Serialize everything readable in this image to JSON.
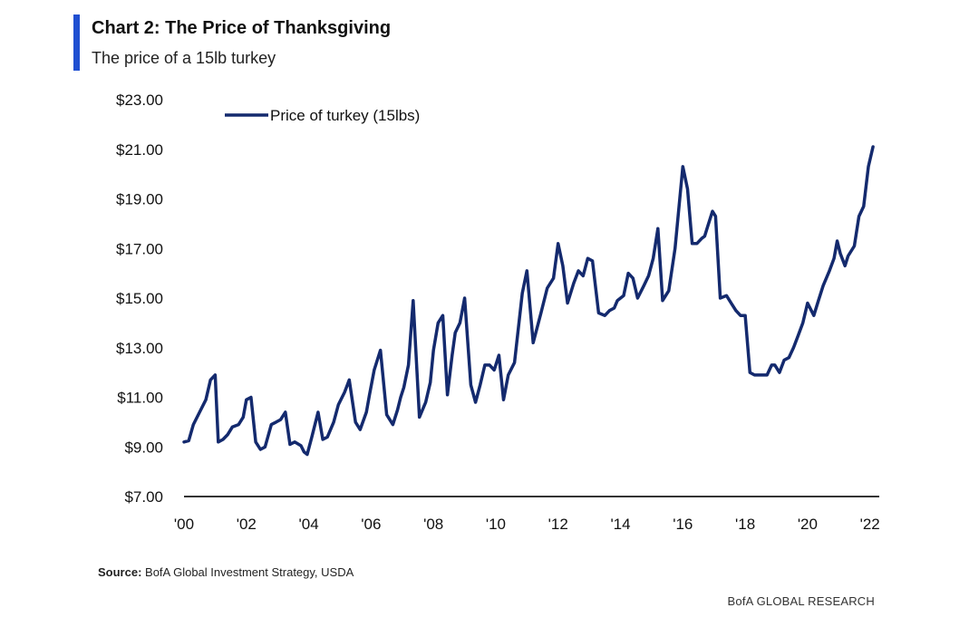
{
  "header": {
    "title": "Chart 2: The Price of Thanksgiving",
    "subtitle": "The price of a 15lb turkey"
  },
  "footer": {
    "source_label": "Source:",
    "source_text": " BofA Global Investment Strategy, USDA",
    "brand": "BofA GLOBAL RESEARCH"
  },
  "colors": {
    "line": "#142a6e",
    "accent": "#1f4fd1",
    "axis": "#333333"
  },
  "chart_data": {
    "type": "line",
    "title": "Chart 2: The Price of Thanksgiving",
    "subtitle": "The price of a 15lb turkey",
    "xlabel": "",
    "ylabel": "",
    "ylim": [
      7,
      23
    ],
    "xlim": [
      2000,
      2022.3
    ],
    "y_ticks": [
      7,
      9,
      11,
      13,
      15,
      17,
      19,
      21,
      23
    ],
    "y_tick_labels": [
      "$7.00",
      "$9.00",
      "$11.00",
      "$13.00",
      "$15.00",
      "$17.00",
      "$19.00",
      "$21.00",
      "$23.00"
    ],
    "x_ticks": [
      2000,
      2002,
      2004,
      2006,
      2008,
      2010,
      2012,
      2014,
      2016,
      2018,
      2020,
      2022
    ],
    "x_tick_labels": [
      "'00",
      "'02",
      "'04",
      "'06",
      "'08",
      "'10",
      "'12",
      "'14",
      "'16",
      "'18",
      "'20",
      "'22"
    ],
    "grid": false,
    "legend_position": "top-left",
    "series": [
      {
        "name": "Price of turkey (15lbs)",
        "x": [
          2000.0,
          2000.15,
          2000.3,
          2000.5,
          2000.7,
          2000.85,
          2001.0,
          2001.1,
          2001.25,
          2001.4,
          2001.55,
          2001.75,
          2001.9,
          2002.0,
          2002.15,
          2002.3,
          2002.45,
          2002.6,
          2002.8,
          2002.95,
          2003.1,
          2003.25,
          2003.4,
          2003.55,
          2003.75,
          2003.85,
          2003.95,
          2004.1,
          2004.3,
          2004.45,
          2004.6,
          2004.8,
          2004.95,
          2005.15,
          2005.3,
          2005.5,
          2005.65,
          2005.85,
          2005.95,
          2006.1,
          2006.3,
          2006.5,
          2006.7,
          2006.85,
          2006.95,
          2007.05,
          2007.2,
          2007.35,
          2007.55,
          2007.75,
          2007.9,
          2008.0,
          2008.15,
          2008.3,
          2008.45,
          2008.6,
          2008.7,
          2008.85,
          2009.0,
          2009.2,
          2009.35,
          2009.5,
          2009.65,
          2009.8,
          2009.95,
          2010.1,
          2010.25,
          2010.4,
          2010.6,
          2010.85,
          2011.0,
          2011.2,
          2011.45,
          2011.65,
          2011.85,
          2012.0,
          2012.15,
          2012.3,
          2012.5,
          2012.65,
          2012.8,
          2012.95,
          2013.1,
          2013.3,
          2013.5,
          2013.65,
          2013.8,
          2013.9,
          2014.1,
          2014.25,
          2014.4,
          2014.55,
          2014.75,
          2014.9,
          2015.05,
          2015.2,
          2015.35,
          2015.55,
          2015.75,
          2015.9,
          2016.0,
          2016.15,
          2016.3,
          2016.45,
          2016.6,
          2016.7,
          2016.8,
          2016.95,
          2017.05,
          2017.2,
          2017.4,
          2017.55,
          2017.7,
          2017.85,
          2018.0,
          2018.15,
          2018.3,
          2018.5,
          2018.7,
          2018.85,
          2018.95,
          2019.1,
          2019.25,
          2019.4,
          2019.55,
          2019.7,
          2019.85,
          2020.0,
          2020.2,
          2020.35,
          2020.5,
          2020.7,
          2020.85,
          2020.95,
          2021.05,
          2021.2,
          2021.3,
          2021.5,
          2021.65,
          2021.8,
          2021.95,
          2022.1
        ],
        "values": [
          9.2,
          9.25,
          9.9,
          10.4,
          10.9,
          11.7,
          11.9,
          9.2,
          9.3,
          9.5,
          9.8,
          9.9,
          10.2,
          10.9,
          11.0,
          9.2,
          8.9,
          9.0,
          9.9,
          10.0,
          10.1,
          10.4,
          9.1,
          9.2,
          9.05,
          8.8,
          8.7,
          9.4,
          10.4,
          9.3,
          9.4,
          10.0,
          10.7,
          11.2,
          11.7,
          10.0,
          9.7,
          10.4,
          11.1,
          12.1,
          12.9,
          10.3,
          9.9,
          10.5,
          11.0,
          11.4,
          12.3,
          14.9,
          10.2,
          10.8,
          11.6,
          12.9,
          14.0,
          14.3,
          11.1,
          12.7,
          13.6,
          14.0,
          15.0,
          11.5,
          10.8,
          11.5,
          12.3,
          12.3,
          12.1,
          12.7,
          10.9,
          11.9,
          12.4,
          15.2,
          16.1,
          13.2,
          14.4,
          15.4,
          15.8,
          17.2,
          16.3,
          14.8,
          15.6,
          16.1,
          15.9,
          16.6,
          16.5,
          14.4,
          14.3,
          14.5,
          14.6,
          14.9,
          15.1,
          16.0,
          15.8,
          15.0,
          15.5,
          15.9,
          16.6,
          17.8,
          14.9,
          15.3,
          17.0,
          19.0,
          20.3,
          19.4,
          17.2,
          17.2,
          17.4,
          17.5,
          17.9,
          18.5,
          18.3,
          15.0,
          15.1,
          14.8,
          14.5,
          14.3,
          14.3,
          12.0,
          11.9,
          11.9,
          11.9,
          12.3,
          12.3,
          12.0,
          12.5,
          12.6,
          13.0,
          13.5,
          14.0,
          14.8,
          14.3,
          14.9,
          15.5,
          16.1,
          16.6,
          17.3,
          16.8,
          16.3,
          16.7,
          17.1,
          18.3,
          18.7,
          20.3,
          21.1
        ]
      }
    ]
  }
}
